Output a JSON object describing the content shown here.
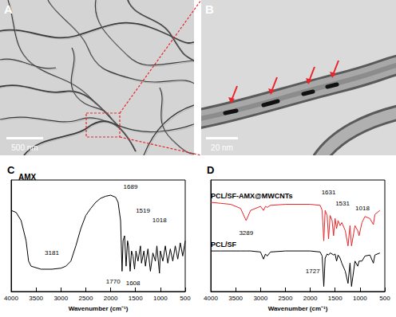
{
  "images": [
    {
      "panel_label": "A",
      "scale_bar": "500 nm"
    },
    {
      "panel_label": "B",
      "scale_bar": "20 nm"
    }
  ],
  "chart_data": [
    {
      "type": "line",
      "panel_label": "C",
      "title": "AMX",
      "x_label": "Wavenumber (cm⁻¹)",
      "x": [
        4000,
        3900,
        3800,
        3700,
        3650,
        3600,
        3400,
        3181,
        3000,
        2900,
        2800,
        2700,
        2600,
        2500,
        2400,
        2300,
        2200,
        2100,
        2000,
        1900,
        1850,
        1800,
        1770,
        1750,
        1720,
        1689,
        1660,
        1640,
        1608,
        1580,
        1550,
        1519,
        1490,
        1450,
        1400,
        1380,
        1330,
        1300,
        1250,
        1200,
        1150,
        1100,
        1070,
        1018,
        1000,
        950,
        900,
        850,
        800,
        750,
        700,
        650,
        600,
        550,
        500
      ],
      "series": [
        {
          "color": "#000000",
          "values": [
            80,
            78,
            70,
            50,
            30,
            25,
            22,
            22,
            23,
            25,
            30,
            45,
            62,
            75,
            82,
            88,
            92,
            94,
            95,
            93,
            88,
            70,
            20,
            50,
            55,
            25,
            50,
            45,
            20,
            40,
            35,
            22,
            40,
            30,
            45,
            28,
            40,
            25,
            42,
            20,
            38,
            30,
            45,
            18,
            40,
            30,
            45,
            28,
            42,
            30,
            45,
            32,
            48,
            35,
            50
          ]
        }
      ],
      "xlim": [
        4000,
        500
      ],
      "xticks": [
        4000,
        3500,
        3000,
        2500,
        2000,
        1500,
        1000,
        500
      ],
      "ylim": [
        0,
        110
      ],
      "yticks": [],
      "tick_labels": "x",
      "grid": false,
      "annotations": [
        {
          "text": "3181",
          "x": 3181,
          "y": 38
        },
        {
          "text": "1770",
          "x": 1950,
          "y": 10
        },
        {
          "text": "1689",
          "x": 1600,
          "y": 103
        },
        {
          "text": "1608",
          "x": 1550,
          "y": 8
        },
        {
          "text": "1519",
          "x": 1350,
          "y": 80
        },
        {
          "text": "1018",
          "x": 1018,
          "y": 70
        }
      ]
    },
    {
      "type": "line",
      "panel_label": "D",
      "x_label": "Wavenumber (cm⁻¹)",
      "x": [
        4000,
        3800,
        3600,
        3400,
        3289,
        3200,
        3000,
        2940,
        2900,
        2865,
        2800,
        2500,
        2000,
        1800,
        1760,
        1727,
        1700,
        1660,
        1631,
        1600,
        1560,
        1531,
        1500,
        1470,
        1440,
        1400,
        1365,
        1295,
        1240,
        1200,
        1170,
        1100,
        1045,
        1018,
        960,
        900,
        800,
        730,
        700,
        600
      ],
      "series": [
        {
          "name": "PCL/SF-AMX@MWCNTs",
          "color": "#e8262a",
          "values": [
            88,
            87,
            86,
            82,
            70,
            80,
            84,
            80,
            84,
            83,
            85,
            86,
            86,
            85,
            80,
            50,
            80,
            75,
            52,
            75,
            70,
            55,
            72,
            62,
            70,
            65,
            68,
            60,
            45,
            65,
            45,
            65,
            60,
            55,
            68,
            74,
            72,
            66,
            76,
            80
          ]
        },
        {
          "name": "PCL/SF",
          "color": "#000000",
          "values": [
            40,
            40,
            40,
            40,
            40,
            40,
            39,
            32,
            37,
            35,
            39,
            40,
            40,
            39,
            35,
            5,
            33,
            37,
            36,
            38,
            37,
            36,
            37,
            30,
            36,
            33,
            28,
            20,
            8,
            28,
            5,
            30,
            25,
            30,
            30,
            35,
            36,
            28,
            36,
            38
          ]
        }
      ],
      "xlim": [
        4000,
        500
      ],
      "xticks": [
        4000,
        3500,
        3000,
        2500,
        2000,
        1500,
        1000,
        500
      ],
      "ylim": [
        0,
        110
      ],
      "yticks": [],
      "tick_labels": "x",
      "grid": false,
      "annotations": [
        {
          "text": "3289",
          "x": 3289,
          "y": 58
        },
        {
          "text": "1727",
          "x": 1950,
          "y": 20
        },
        {
          "text": "1631",
          "x": 1631,
          "y": 98
        },
        {
          "text": "1531",
          "x": 1350,
          "y": 87
        },
        {
          "text": "1018",
          "x": 950,
          "y": 82
        }
      ]
    }
  ]
}
